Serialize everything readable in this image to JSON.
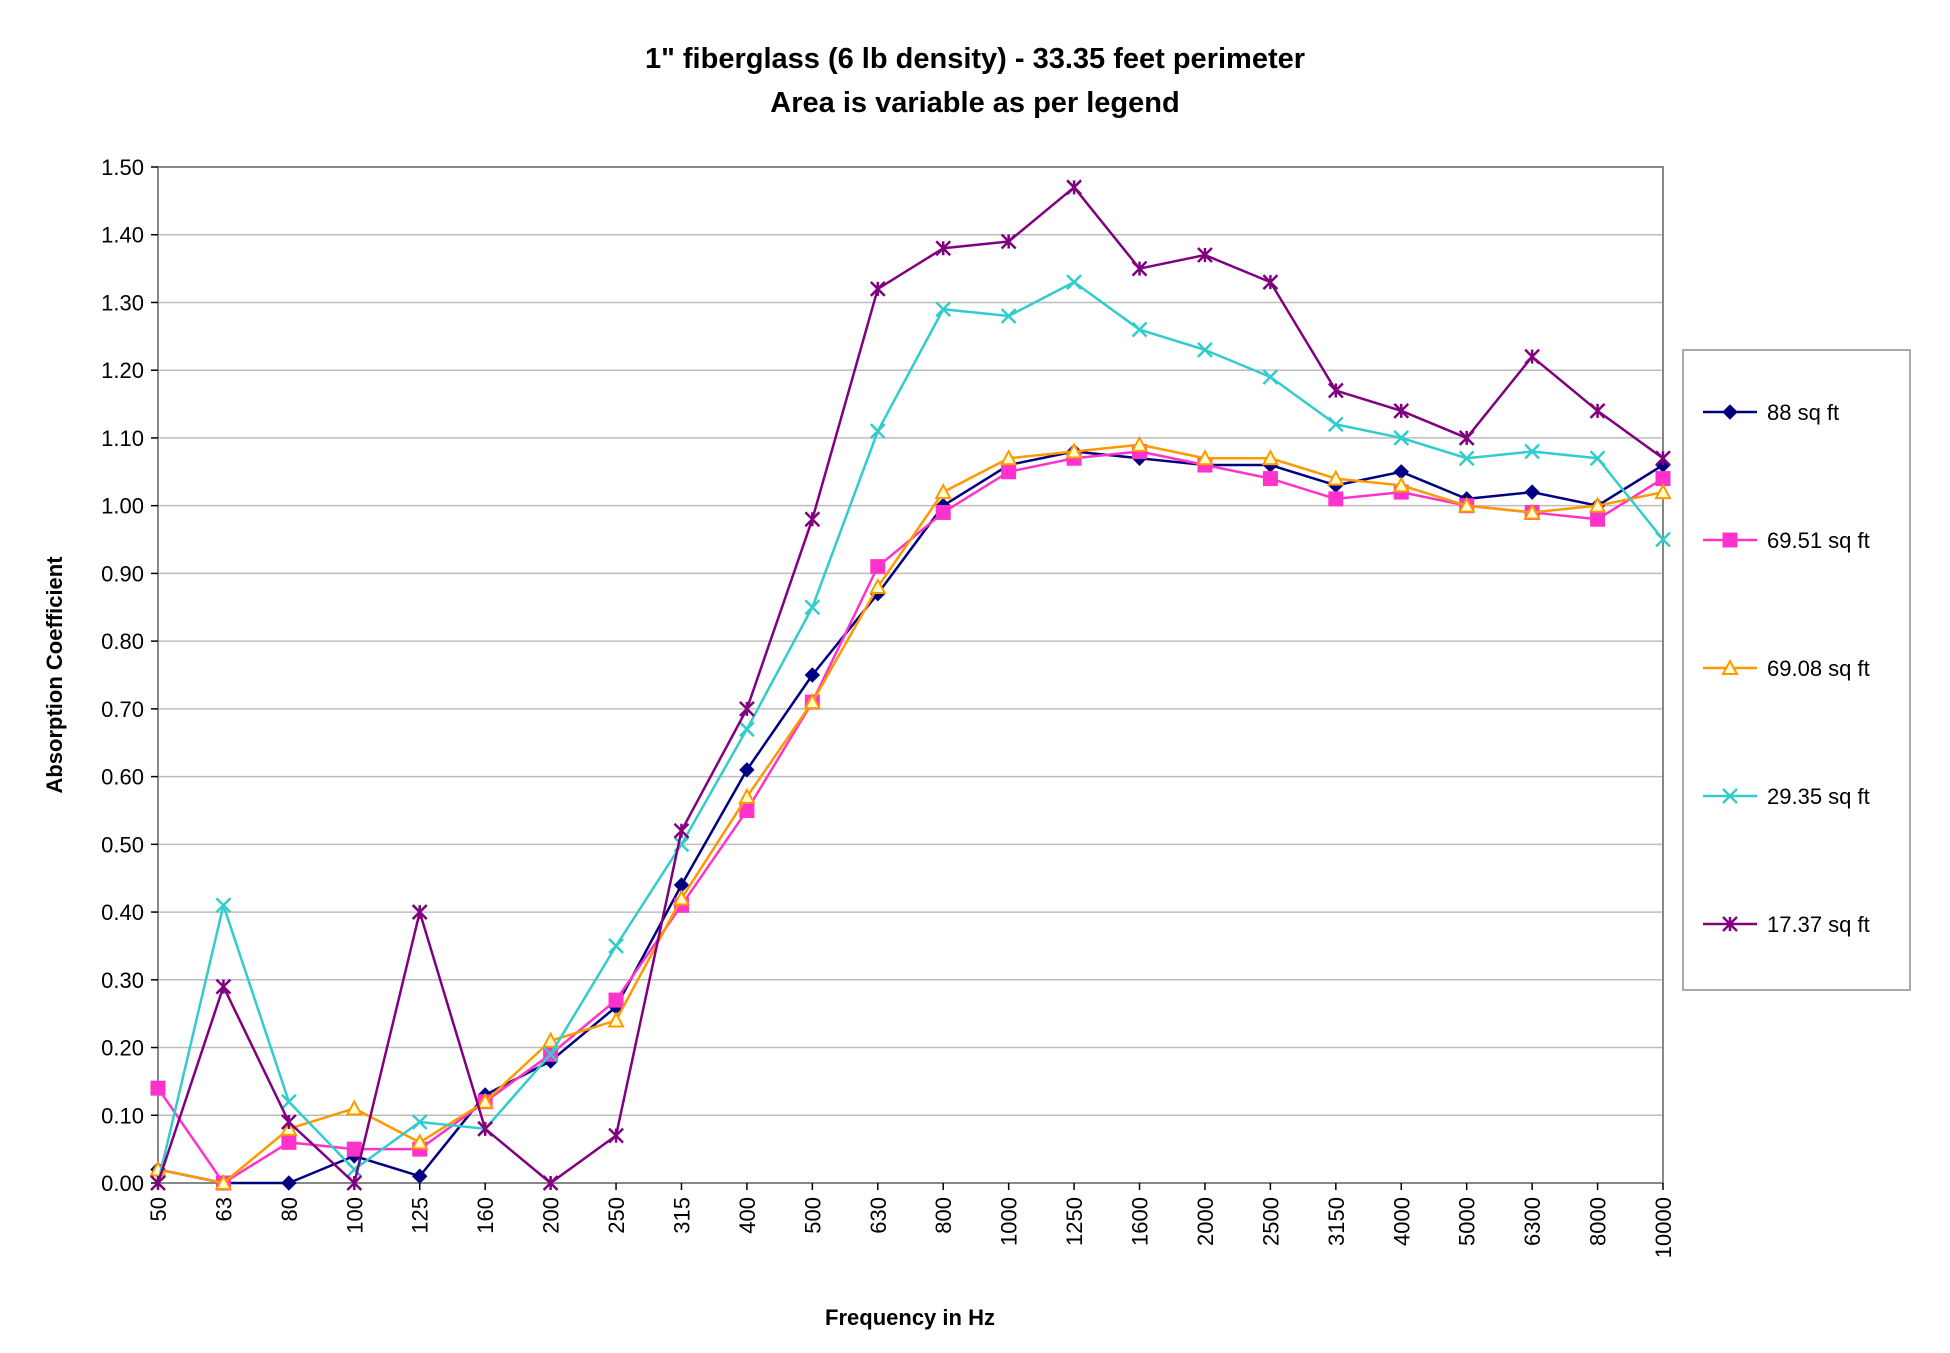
{
  "chart_data": {
    "type": "line",
    "title": "1\" fiberglass (6 lb density) - 33.35 feet perimeter",
    "subtitle": "Area is variable as per legend",
    "xlabel": "Frequency in Hz",
    "ylabel": "Absorption Coefficient",
    "ylim": [
      0,
      1.5
    ],
    "ytick_step": 0.1,
    "grid": true,
    "legend_position": "right",
    "categories": [
      "50",
      "63",
      "80",
      "100",
      "125",
      "160",
      "200",
      "250",
      "315",
      "400",
      "500",
      "630",
      "800",
      "1000",
      "1250",
      "1600",
      "2000",
      "2500",
      "3150",
      "4000",
      "5000",
      "6300",
      "8000",
      "10000"
    ],
    "series": [
      {
        "name": "88 sq ft",
        "color": "#000080",
        "marker": "diamond",
        "values": [
          0.02,
          0.0,
          0.0,
          0.04,
          0.01,
          0.13,
          0.18,
          0.26,
          0.44,
          0.61,
          0.75,
          0.87,
          1.0,
          1.06,
          1.08,
          1.07,
          1.06,
          1.06,
          1.03,
          1.05,
          1.01,
          1.02,
          1.0,
          1.06
        ]
      },
      {
        "name": "69.51 sq ft",
        "color": "#ff33cc",
        "marker": "square",
        "values": [
          0.14,
          0.0,
          0.06,
          0.05,
          0.05,
          0.12,
          0.19,
          0.27,
          0.41,
          0.55,
          0.71,
          0.91,
          0.99,
          1.05,
          1.07,
          1.08,
          1.06,
          1.04,
          1.01,
          1.02,
          1.0,
          0.99,
          0.98,
          1.04
        ]
      },
      {
        "name": "69.08 sq ft",
        "color": "#ff9900",
        "marker": "triangle",
        "values": [
          0.02,
          0.0,
          0.08,
          0.11,
          0.06,
          0.12,
          0.21,
          0.24,
          0.42,
          0.57,
          0.71,
          0.88,
          1.02,
          1.07,
          1.08,
          1.09,
          1.07,
          1.07,
          1.04,
          1.03,
          1.0,
          0.99,
          1.0,
          1.02
        ]
      },
      {
        "name": "29.35 sq ft",
        "color": "#33cccc",
        "marker": "x",
        "values": [
          0.0,
          0.41,
          0.12,
          0.02,
          0.09,
          0.08,
          0.19,
          0.35,
          0.5,
          0.67,
          0.85,
          1.11,
          1.29,
          1.28,
          1.33,
          1.26,
          1.23,
          1.19,
          1.12,
          1.1,
          1.07,
          1.08,
          1.07,
          0.95
        ]
      },
      {
        "name": "17.37 sq ft",
        "color": "#800080",
        "marker": "asterisk",
        "values": [
          0.0,
          0.29,
          0.09,
          0.0,
          0.4,
          0.08,
          0.0,
          0.07,
          0.52,
          0.7,
          0.98,
          1.32,
          1.38,
          1.39,
          1.47,
          1.35,
          1.37,
          1.33,
          1.17,
          1.14,
          1.1,
          1.22,
          1.14,
          1.07
        ]
      }
    ]
  }
}
